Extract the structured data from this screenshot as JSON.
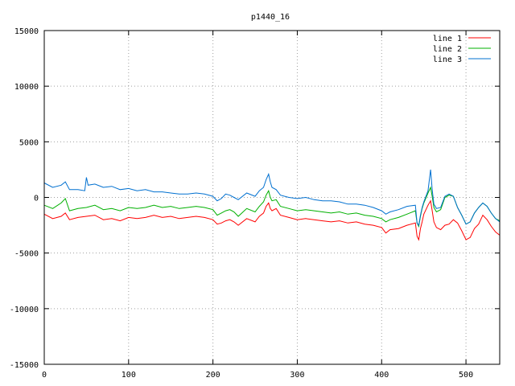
{
  "chart_data": {
    "type": "line",
    "title": "p1440_16",
    "xlabel": "",
    "ylabel": "",
    "xlim": [
      0,
      540
    ],
    "ylim": [
      -15000,
      15000
    ],
    "x_ticks": [
      0,
      100,
      200,
      300,
      400,
      500
    ],
    "y_ticks": [
      -15000,
      -10000,
      -5000,
      0,
      5000,
      10000,
      15000
    ],
    "grid": true,
    "legend_position": "top-right",
    "series": [
      {
        "name": "line 1",
        "color": "#ff0000",
        "x": [
          0,
          10,
          20,
          25,
          30,
          40,
          50,
          60,
          70,
          80,
          90,
          100,
          110,
          120,
          130,
          140,
          150,
          160,
          170,
          180,
          190,
          200,
          205,
          210,
          215,
          220,
          225,
          230,
          240,
          250,
          255,
          260,
          263,
          266,
          268,
          270,
          275,
          280,
          290,
          300,
          310,
          320,
          330,
          340,
          350,
          360,
          370,
          380,
          390,
          400,
          405,
          410,
          420,
          430,
          440,
          442,
          444,
          446,
          448,
          450,
          455,
          458,
          460,
          462,
          465,
          470,
          475,
          480,
          485,
          490,
          495,
          500,
          505,
          510,
          515,
          520,
          525,
          530,
          535,
          540
        ],
        "y": [
          -1500,
          -1900,
          -1700,
          -1400,
          -2000,
          -1800,
          -1700,
          -1600,
          -2000,
          -1900,
          -2100,
          -1800,
          -1900,
          -1800,
          -1600,
          -1800,
          -1700,
          -1900,
          -1800,
          -1700,
          -1800,
          -2000,
          -2400,
          -2300,
          -2100,
          -2000,
          -2200,
          -2500,
          -1900,
          -2200,
          -1700,
          -1400,
          -800,
          -500,
          -1000,
          -1200,
          -1000,
          -1600,
          -1800,
          -2000,
          -1900,
          -2000,
          -2100,
          -2200,
          -2100,
          -2300,
          -2200,
          -2400,
          -2500,
          -2700,
          -3200,
          -2900,
          -2800,
          -2500,
          -2300,
          -3500,
          -3800,
          -2800,
          -2200,
          -1500,
          -700,
          -300,
          -1200,
          -2200,
          -2700,
          -2900,
          -2500,
          -2400,
          -2000,
          -2300,
          -3000,
          -3800,
          -3600,
          -2800,
          -2400,
          -1600,
          -2000,
          -2600,
          -3100,
          -3400
        ]
      },
      {
        "name": "line 2",
        "color": "#00b000",
        "x": [
          0,
          10,
          20,
          25,
          30,
          40,
          50,
          60,
          70,
          80,
          90,
          100,
          110,
          120,
          130,
          140,
          150,
          160,
          170,
          180,
          190,
          200,
          205,
          210,
          215,
          220,
          225,
          230,
          240,
          250,
          255,
          260,
          263,
          266,
          268,
          270,
          275,
          280,
          290,
          300,
          310,
          320,
          330,
          340,
          350,
          360,
          370,
          380,
          390,
          400,
          405,
          410,
          420,
          430,
          440,
          442,
          444,
          446,
          448,
          450,
          455,
          458,
          460,
          462,
          465,
          470,
          475,
          480,
          485,
          490,
          495,
          500,
          505,
          510,
          515,
          520,
          525,
          530,
          535,
          540
        ],
        "y": [
          -700,
          -1000,
          -500,
          -100,
          -1200,
          -1000,
          -900,
          -700,
          -1100,
          -1000,
          -1200,
          -900,
          -1000,
          -900,
          -700,
          -900,
          -800,
          -1000,
          -900,
          -800,
          -900,
          -1100,
          -1600,
          -1400,
          -1200,
          -1100,
          -1300,
          -1700,
          -1000,
          -1300,
          -800,
          -400,
          200,
          600,
          0,
          -300,
          -200,
          -800,
          -1000,
          -1200,
          -1100,
          -1200,
          -1300,
          -1400,
          -1300,
          -1500,
          -1400,
          -1600,
          -1700,
          -1900,
          -2200,
          -2000,
          -1800,
          -1500,
          -1200,
          -2300,
          -2600,
          -1700,
          -1000,
          -500,
          400,
          900,
          100,
          -900,
          -1300,
          -1100,
          0,
          200,
          100,
          -900,
          -1600,
          -2400,
          -2200,
          -1400,
          -900,
          -500,
          -800,
          -1400,
          -1900,
          -2100
        ]
      },
      {
        "name": "line 3",
        "color": "#0070d0",
        "x": [
          0,
          10,
          20,
          25,
          30,
          40,
          48,
          50,
          52,
          60,
          70,
          80,
          90,
          100,
          110,
          120,
          130,
          140,
          150,
          160,
          170,
          180,
          190,
          200,
          205,
          210,
          215,
          220,
          225,
          230,
          240,
          250,
          255,
          260,
          263,
          266,
          268,
          270,
          275,
          280,
          290,
          300,
          310,
          320,
          330,
          340,
          350,
          360,
          370,
          380,
          390,
          400,
          405,
          410,
          420,
          430,
          440,
          442,
          444,
          446,
          448,
          450,
          455,
          458,
          460,
          462,
          465,
          470,
          475,
          480,
          485,
          490,
          495,
          500,
          505,
          510,
          515,
          520,
          525,
          530,
          535,
          540
        ],
        "y": [
          1300,
          900,
          1100,
          1400,
          700,
          700,
          600,
          1800,
          1100,
          1200,
          900,
          1000,
          700,
          800,
          600,
          700,
          500,
          500,
          400,
          300,
          300,
          400,
          300,
          100,
          -300,
          -100,
          300,
          200,
          0,
          -200,
          400,
          100,
          600,
          900,
          1600,
          2100,
          1400,
          900,
          700,
          200,
          0,
          -100,
          0,
          -200,
          -300,
          -300,
          -400,
          -600,
          -600,
          -700,
          -900,
          -1200,
          -1500,
          -1300,
          -1100,
          -800,
          -700,
          -2300,
          -2500,
          -1600,
          -900,
          -400,
          600,
          2500,
          700,
          -600,
          -1000,
          -900,
          100,
          300,
          100,
          -900,
          -1600,
          -2400,
          -2200,
          -1400,
          -900,
          -500,
          -800,
          -1400,
          -1900,
          -2200
        ]
      }
    ]
  }
}
